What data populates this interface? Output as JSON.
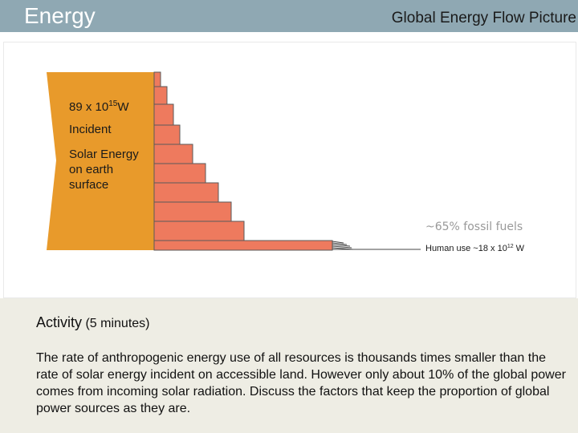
{
  "header": {
    "section_title": "Energy",
    "slide_title": "Global Energy Flow Picture"
  },
  "diagram": {
    "incident_value_base": "89 x 10",
    "incident_value_exp": "15",
    "incident_value_unit": "W",
    "incident_word": "Incident",
    "incident_desc": "Solar Energy\non earth\nsurface",
    "fossil_label": "~65% fossil fuels",
    "human_use_base": "Human use ~18 x 10",
    "human_use_exp": "12",
    "human_use_unit": " W",
    "colors": {
      "incident_fill": "#E89A2B",
      "step_fill": "#EE7A5E",
      "step_stroke": "#5a5a5a"
    }
  },
  "activity": {
    "title": "Activity",
    "duration": " (5 minutes)",
    "body": "The rate of anthropogenic energy use of all resources is thousands times smaller than the rate of solar energy incident on accessible land. However only about 10% of the global power comes from incoming solar radiation. Discuss the factors that keep the proportion of global power sources as they are."
  }
}
